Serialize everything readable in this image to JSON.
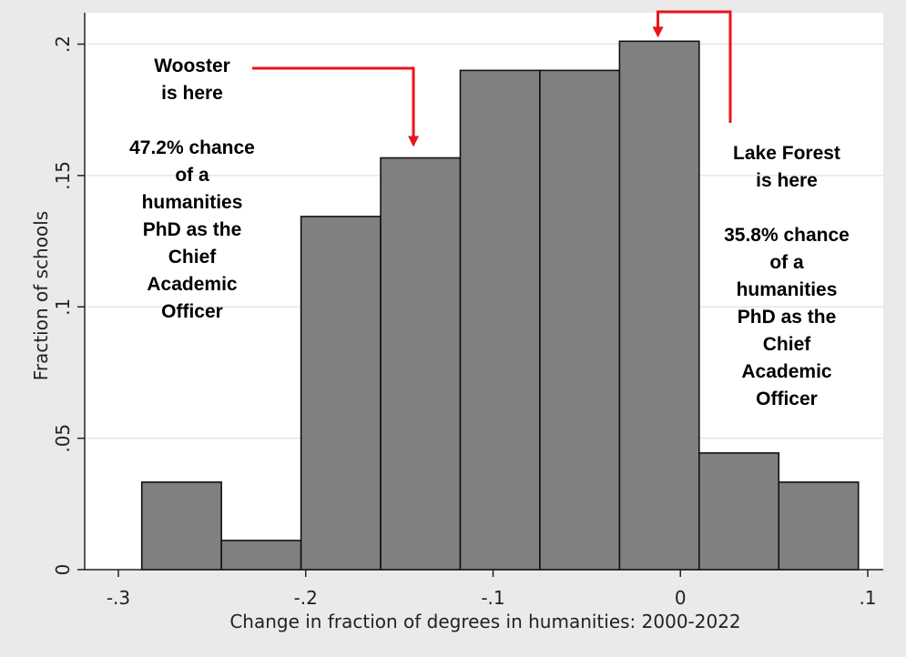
{
  "chart_data": {
    "type": "bar",
    "title": "",
    "xlabel": "Change in fraction of degrees in humanities: 2000-2022",
    "ylabel": "Fraction of schools",
    "xlim": [
      -0.3,
      0.1
    ],
    "ylim": [
      0,
      0.2
    ],
    "x_ticks": [
      -0.3,
      -0.2,
      -0.1,
      0,
      0.1
    ],
    "x_tick_labels": [
      "-.3",
      "-.2",
      "-.1",
      "0",
      ".1"
    ],
    "y_ticks": [
      0,
      0.05,
      0.1,
      0.15,
      0.2
    ],
    "y_tick_labels": [
      "0",
      ".05",
      ".1",
      ".15",
      ".2"
    ],
    "grid": "horizontal",
    "bins": [
      {
        "x0": -0.2875,
        "x1": -0.245,
        "value": 0.0333
      },
      {
        "x0": -0.245,
        "x1": -0.2025,
        "value": 0.0111
      },
      {
        "x0": -0.2025,
        "x1": -0.16,
        "value": 0.1344
      },
      {
        "x0": -0.16,
        "x1": -0.1175,
        "value": 0.1567
      },
      {
        "x0": -0.1175,
        "x1": -0.075,
        "value": 0.19
      },
      {
        "x0": -0.075,
        "x1": -0.0325,
        "value": 0.19
      },
      {
        "x0": -0.0325,
        "x1": 0.01,
        "value": 0.2011
      },
      {
        "x0": 0.01,
        "x1": 0.0525,
        "value": 0.0444
      },
      {
        "x0": 0.0525,
        "x1": 0.095,
        "value": 0.0333
      }
    ],
    "bar_color": "#808080",
    "arrow_color": "#e8141b",
    "annotations": [
      {
        "id": "wooster",
        "lines": [
          "Wooster",
          "is here",
          "",
          "47.2% chance",
          "of a",
          "humanities",
          "PhD as the",
          "Chief",
          "Academic",
          "Officer"
        ],
        "arrow_target": {
          "x": -0.1425,
          "y": 0.1567
        }
      },
      {
        "id": "lake-forest",
        "lines": [
          "Lake Forest",
          "is here",
          "",
          "35.8% chance",
          "of a",
          "humanities",
          "PhD as the",
          "Chief",
          "Academic",
          "Officer"
        ],
        "arrow_target": {
          "x": -0.012,
          "y": 0.2011
        }
      }
    ]
  }
}
